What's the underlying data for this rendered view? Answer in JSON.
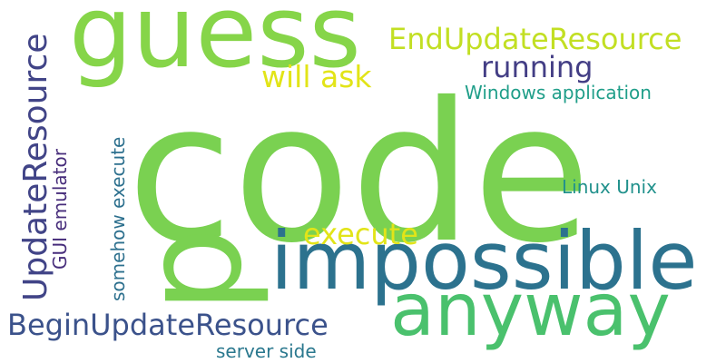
{
  "words": [
    {
      "text": "code",
      "color": "#7ad151"
    },
    {
      "text": "p",
      "color": "#7ad151"
    },
    {
      "text": "guess",
      "color": "#86d549"
    },
    {
      "text": "impossible",
      "color": "#2c728e"
    },
    {
      "text": "anyway",
      "color": "#4ac16d"
    },
    {
      "text": "UpdateResource",
      "color": "#414487"
    },
    {
      "text": "BeginUpdateResource",
      "color": "#3b528b"
    },
    {
      "text": "EndUpdateResource",
      "color": "#c2df23"
    },
    {
      "text": "running",
      "color": "#433e85"
    },
    {
      "text": "will ask",
      "color": "#e2e418"
    },
    {
      "text": "execute",
      "color": "#e2e418"
    },
    {
      "text": "Windows application",
      "color": "#1f9e89"
    },
    {
      "text": "somehow execute",
      "color": "#2d708e"
    },
    {
      "text": "GUI emulator",
      "color": "#472d7b"
    },
    {
      "text": "Linux Unix",
      "color": "#21918c"
    },
    {
      "text": "server side",
      "color": "#2a788e"
    }
  ]
}
